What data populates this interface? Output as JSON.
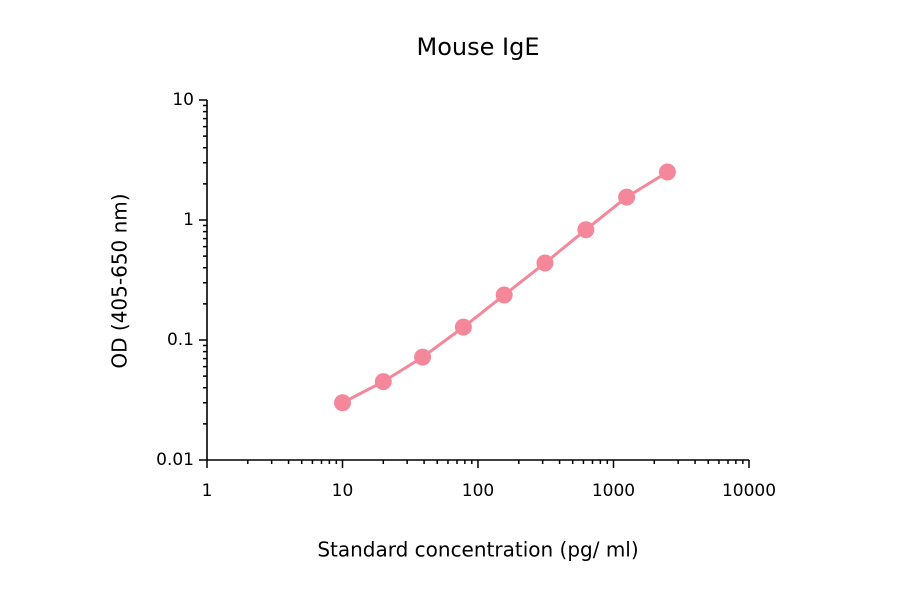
{
  "chart_data": {
    "type": "line",
    "title": "Mouse IgE",
    "x_label": "Standard concentration (pg/ ml)",
    "y_label": "OD (405-650 nm)",
    "x": [
      10,
      20,
      39,
      78,
      156,
      312,
      625,
      1250,
      2500
    ],
    "series": [
      {
        "name": "Mouse IgE",
        "color": "#f4889a",
        "values": [
          0.03,
          0.045,
          0.072,
          0.128,
          0.237,
          0.438,
          0.83,
          1.55,
          2.51
        ]
      }
    ],
    "xlim": [
      1,
      10000
    ],
    "xticks": [
      1,
      10,
      100,
      1000,
      10000
    ],
    "ylim": [
      0.01,
      10
    ],
    "yticks": [
      0.01,
      0.1,
      1,
      10
    ],
    "log_x": true,
    "log_y": true,
    "minor_ticks": true,
    "markers": true
  }
}
